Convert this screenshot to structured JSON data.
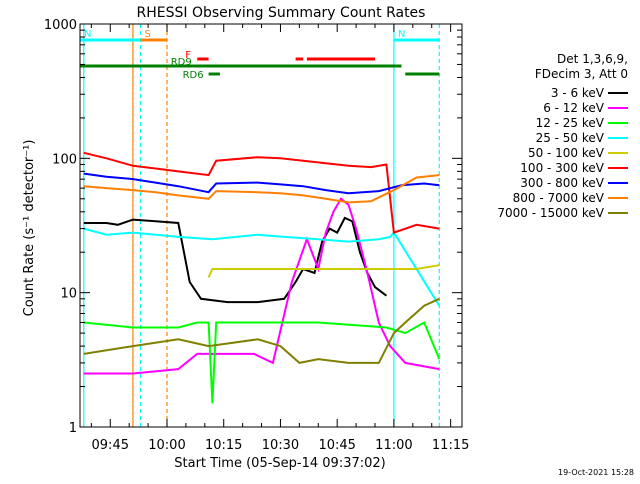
{
  "chart_data": {
    "type": "line",
    "title": "RHESSI Observing Summary Count Rates",
    "xlabel": "Start Time (05-Sep-14 09:37:02)",
    "ylabel": "Count Rate (s⁻¹ detector⁻¹)",
    "footer": "19-Oct-2021 15:28",
    "x_scale": "time",
    "x_range": [
      "09:37",
      "11:18"
    ],
    "x_ticks": [
      "09:45",
      "10:00",
      "10:15",
      "10:30",
      "10:45",
      "11:00",
      "11:15"
    ],
    "y_scale": "log",
    "y_range": [
      1,
      1000
    ],
    "y_ticks": [
      "1",
      "10",
      "100",
      "1000"
    ],
    "grid": false,
    "legend_position": "right",
    "legend_header": [
      "Det 1,3,6,9,",
      "FDecim 3, Att 0"
    ],
    "series": [
      {
        "name": "3 - 6 keV",
        "color": "#000000",
        "points": [
          [
            "09:38",
            33
          ],
          [
            "09:44",
            33
          ],
          [
            "09:47",
            32
          ],
          [
            "09:51",
            35
          ],
          [
            "09:57",
            34
          ],
          [
            "10:03",
            33
          ],
          [
            "10:06",
            12
          ],
          [
            "10:09",
            9
          ],
          [
            "10:16",
            8.5
          ],
          [
            "10:24",
            8.5
          ],
          [
            "10:31",
            9
          ],
          [
            "10:34",
            12
          ],
          [
            "10:36",
            15
          ],
          [
            "10:39",
            14
          ],
          [
            "10:41",
            24
          ],
          [
            "10:43",
            30
          ],
          [
            "10:45",
            28
          ],
          [
            "10:47",
            36
          ],
          [
            "10:49",
            34
          ],
          [
            "10:51",
            20
          ],
          [
            "10:53",
            14
          ],
          [
            "10:55",
            11
          ],
          [
            "10:58",
            9.5
          ]
        ]
      },
      {
        "name": "6 - 12 keV",
        "color": "#ff00ff",
        "points": [
          [
            "09:38",
            2.5
          ],
          [
            "09:51",
            2.5
          ],
          [
            "10:03",
            2.7
          ],
          [
            "10:08",
            3.5
          ],
          [
            "10:16",
            3.5
          ],
          [
            "10:23",
            3.5
          ],
          [
            "10:28",
            3
          ],
          [
            "10:33",
            12
          ],
          [
            "10:37",
            25
          ],
          [
            "10:40",
            15
          ],
          [
            "10:42",
            28
          ],
          [
            "10:44",
            40
          ],
          [
            "10:46",
            50
          ],
          [
            "10:48",
            45
          ],
          [
            "10:50",
            30
          ],
          [
            "10:53",
            14
          ],
          [
            "10:56",
            6
          ],
          [
            "10:59",
            4
          ],
          [
            "11:03",
            3
          ],
          [
            "11:12",
            2.7
          ]
        ]
      },
      {
        "name": "12 - 25 keV",
        "color": "#00ff00",
        "points": [
          [
            "09:38",
            6
          ],
          [
            "09:51",
            5.5
          ],
          [
            "10:03",
            5.5
          ],
          [
            "10:08",
            6
          ],
          [
            "10:11",
            6
          ],
          [
            "10:12",
            1.5
          ],
          [
            "10:13",
            6
          ],
          [
            "10:24",
            6
          ],
          [
            "10:40",
            6
          ],
          [
            "10:58",
            5.5
          ],
          [
            "11:03",
            5
          ],
          [
            "11:08",
            6
          ],
          [
            "11:12",
            3.2
          ]
        ]
      },
      {
        "name": "25 - 50 keV",
        "color": "#00ffff",
        "points": [
          [
            "09:38",
            30
          ],
          [
            "09:44",
            27
          ],
          [
            "09:51",
            28
          ],
          [
            "09:57",
            27
          ],
          [
            "10:03",
            26
          ],
          [
            "10:12",
            25
          ],
          [
            "10:24",
            27
          ],
          [
            "10:31",
            26
          ],
          [
            "10:40",
            25
          ],
          [
            "10:48",
            24
          ],
          [
            "10:56",
            25
          ],
          [
            "10:59",
            26
          ],
          [
            "11:00",
            28
          ],
          [
            "11:12",
            8
          ]
        ]
      },
      {
        "name": "50 - 100 keV",
        "color": "#cccc00",
        "points": [
          [
            "10:11",
            13
          ],
          [
            "10:12",
            15
          ],
          [
            "11:06",
            15
          ],
          [
            "11:12",
            16
          ]
        ]
      },
      {
        "name": "100 - 300 keV",
        "color": "#ff0000",
        "points": [
          [
            "09:38",
            110
          ],
          [
            "09:44",
            100
          ],
          [
            "09:51",
            88
          ],
          [
            "09:57",
            84
          ],
          [
            "10:03",
            80
          ],
          [
            "10:11",
            75
          ],
          [
            "10:13",
            96
          ],
          [
            "10:24",
            102
          ],
          [
            "10:30",
            100
          ],
          [
            "10:36",
            96
          ],
          [
            "10:42",
            92
          ],
          [
            "10:48",
            88
          ],
          [
            "10:54",
            86
          ],
          [
            "10:58",
            90
          ],
          [
            "11:00",
            28
          ],
          [
            "11:06",
            32
          ],
          [
            "11:12",
            30
          ]
        ]
      },
      {
        "name": "300 - 800 keV",
        "color": "#0000ff",
        "points": [
          [
            "09:38",
            77
          ],
          [
            "09:44",
            73
          ],
          [
            "09:51",
            70
          ],
          [
            "09:57",
            66
          ],
          [
            "10:03",
            62
          ],
          [
            "10:11",
            56
          ],
          [
            "10:13",
            65
          ],
          [
            "10:24",
            66
          ],
          [
            "10:30",
            64
          ],
          [
            "10:36",
            62
          ],
          [
            "10:42",
            58
          ],
          [
            "10:48",
            55
          ],
          [
            "10:56",
            57
          ],
          [
            "11:02",
            63
          ],
          [
            "11:08",
            65
          ],
          [
            "11:12",
            63
          ]
        ]
      },
      {
        "name": "800 - 7000 keV",
        "color": "#ff8000",
        "points": [
          [
            "09:38",
            62
          ],
          [
            "09:44",
            60
          ],
          [
            "09:51",
            58
          ],
          [
            "09:57",
            56
          ],
          [
            "10:03",
            53
          ],
          [
            "10:11",
            50
          ],
          [
            "10:13",
            57
          ],
          [
            "10:24",
            56
          ],
          [
            "10:30",
            55
          ],
          [
            "10:36",
            53
          ],
          [
            "10:42",
            50
          ],
          [
            "10:48",
            47
          ],
          [
            "10:54",
            48
          ],
          [
            "11:00",
            58
          ],
          [
            "11:06",
            72
          ],
          [
            "11:12",
            75
          ]
        ]
      },
      {
        "name": "7000 - 15000 keV",
        "color": "#808000",
        "points": [
          [
            "09:38",
            3.5
          ],
          [
            "09:51",
            4
          ],
          [
            "10:03",
            4.5
          ],
          [
            "10:11",
            4
          ],
          [
            "10:24",
            4.5
          ],
          [
            "10:30",
            4
          ],
          [
            "10:35",
            3
          ],
          [
            "10:40",
            3.2
          ],
          [
            "10:48",
            3
          ],
          [
            "10:56",
            3
          ],
          [
            "11:00",
            5
          ],
          [
            "11:03",
            6
          ],
          [
            "11:08",
            8
          ],
          [
            "11:12",
            9
          ]
        ]
      }
    ],
    "flags": [
      {
        "label": "S",
        "color": "#ff8000",
        "start": "09:53",
        "end": "10:00",
        "level": "upper"
      },
      {
        "label": "N",
        "color": "#00ffff",
        "start": "09:37",
        "end": "09:53",
        "level": "upper"
      },
      {
        "label": "N",
        "color": "#00ffff",
        "start": "11:00",
        "end": "11:12",
        "level": "upper"
      },
      {
        "label": "F",
        "color": "#ff0000",
        "start": "10:08",
        "end": "10:11",
        "level": "middle"
      },
      {
        "label": "",
        "color": "#ff0000",
        "start": "10:34",
        "end": "10:36",
        "level": "middle"
      },
      {
        "label": "",
        "color": "#ff0000",
        "start": "10:37",
        "end": "10:55",
        "level": "middle"
      },
      {
        "label": "RD9",
        "color": "#008000",
        "start": "09:37",
        "end": "11:02",
        "level": "lower"
      },
      {
        "label": "RD9",
        "color": "#008000",
        "start": "11:03",
        "end": "11:12",
        "level": "low"
      },
      {
        "label": "RD6",
        "color": "#008000",
        "start": "10:11",
        "end": "10:14",
        "level": "lowest"
      }
    ],
    "vertical_markers": [
      {
        "time": "09:38",
        "color": "#00ffff",
        "style": "solid"
      },
      {
        "time": "09:51",
        "color": "#ff8000",
        "style": "solid"
      },
      {
        "time": "09:53",
        "color": "#00ffff",
        "style": "dashed"
      },
      {
        "time": "10:00",
        "color": "#ff8000",
        "style": "dashed"
      },
      {
        "time": "11:00",
        "color": "#00ffff",
        "style": "solid"
      },
      {
        "time": "11:12",
        "color": "#00ffff",
        "style": "dashed"
      }
    ]
  }
}
